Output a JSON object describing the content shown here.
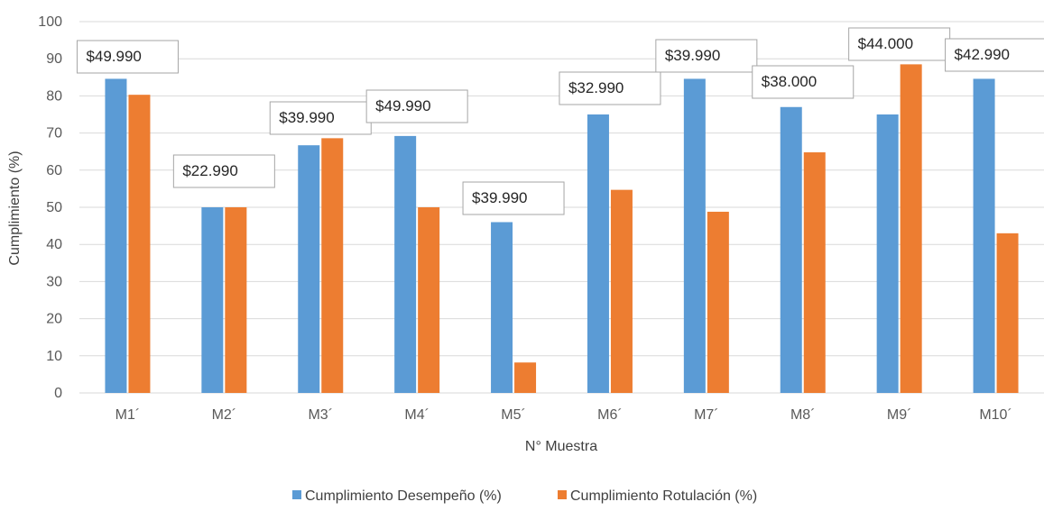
{
  "chart_data": {
    "type": "bar",
    "xlabel": "N° Muestra",
    "ylabel": "Cumplimiento (%)",
    "ylim": [
      0,
      100
    ],
    "yticks": [
      0,
      10,
      20,
      30,
      40,
      50,
      60,
      70,
      80,
      90,
      100
    ],
    "grid": true,
    "legend_position": "bottom",
    "categories": [
      "M1´",
      "M2´",
      "M3´",
      "M4´",
      "M5´",
      "M6´",
      "M7´",
      "M8´",
      "M9´",
      "M10´"
    ],
    "series": [
      {
        "name": "Cumplimiento Desempeño (%)",
        "color": "#5B9BD5",
        "values": [
          84.6,
          50,
          66.7,
          69.2,
          46,
          75,
          84.6,
          77,
          75,
          84.6
        ]
      },
      {
        "name": "Cumplimiento Rotulación (%)",
        "color": "#ED7D31",
        "values": [
          80.3,
          50,
          68.6,
          50,
          8.2,
          54.7,
          48.8,
          64.8,
          88.5,
          43
        ]
      }
    ],
    "annotations": [
      "$49.990",
      "$22.990",
      "$39.990",
      "$49.990",
      "$39.990",
      "$32.990",
      "$39.990",
      "$38.000",
      "$44.000",
      "$42.990"
    ]
  }
}
